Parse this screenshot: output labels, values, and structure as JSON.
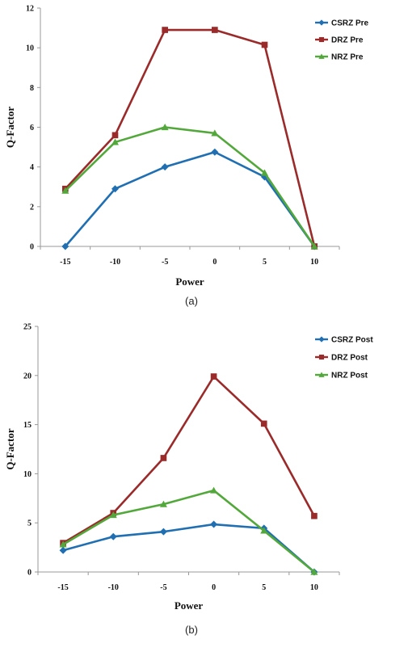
{
  "chart_data": [
    {
      "type": "line",
      "caption": "(a)",
      "xlabel": "Power",
      "ylabel": "Q-Factor",
      "x": [
        -15,
        -10,
        -5,
        0,
        5,
        10
      ],
      "ylim": [
        0,
        12
      ],
      "yticks": [
        0,
        2,
        4,
        6,
        8,
        10,
        12
      ],
      "grid": false,
      "legend_position": "top-right",
      "series": [
        {
          "name": "CSRZ Pre",
          "marker": "diamond",
          "color": "#1f6fb2",
          "values": [
            0,
            2.9,
            4.0,
            4.75,
            3.5,
            0
          ]
        },
        {
          "name": "DRZ Pre",
          "marker": "square",
          "color": "#9b2a2a",
          "values": [
            2.9,
            5.6,
            10.9,
            10.9,
            10.15,
            0
          ]
        },
        {
          "name": "NRZ Pre",
          "marker": "triangle",
          "color": "#52a83a",
          "values": [
            2.8,
            5.25,
            6.0,
            5.7,
            3.7,
            0
          ]
        }
      ]
    },
    {
      "type": "line",
      "caption": "(b)",
      "xlabel": "Power",
      "ylabel": "Q-Factor",
      "x": [
        -15,
        -10,
        -5,
        0,
        5,
        10
      ],
      "ylim": [
        0,
        25
      ],
      "yticks": [
        0,
        5,
        10,
        15,
        20,
        25
      ],
      "grid": false,
      "legend_position": "top-right",
      "series": [
        {
          "name": "CSRZ Post",
          "marker": "diamond",
          "color": "#1f6fb2",
          "values": [
            2.2,
            3.6,
            4.1,
            4.85,
            4.45,
            0
          ]
        },
        {
          "name": "DRZ Post",
          "marker": "square",
          "color": "#9b2a2a",
          "values": [
            2.95,
            6.0,
            11.6,
            19.9,
            15.1,
            5.7
          ]
        },
        {
          "name": "NRZ Post",
          "marker": "triangle",
          "color": "#52a83a",
          "values": [
            2.8,
            5.8,
            6.9,
            8.3,
            4.2,
            0
          ]
        }
      ]
    }
  ]
}
